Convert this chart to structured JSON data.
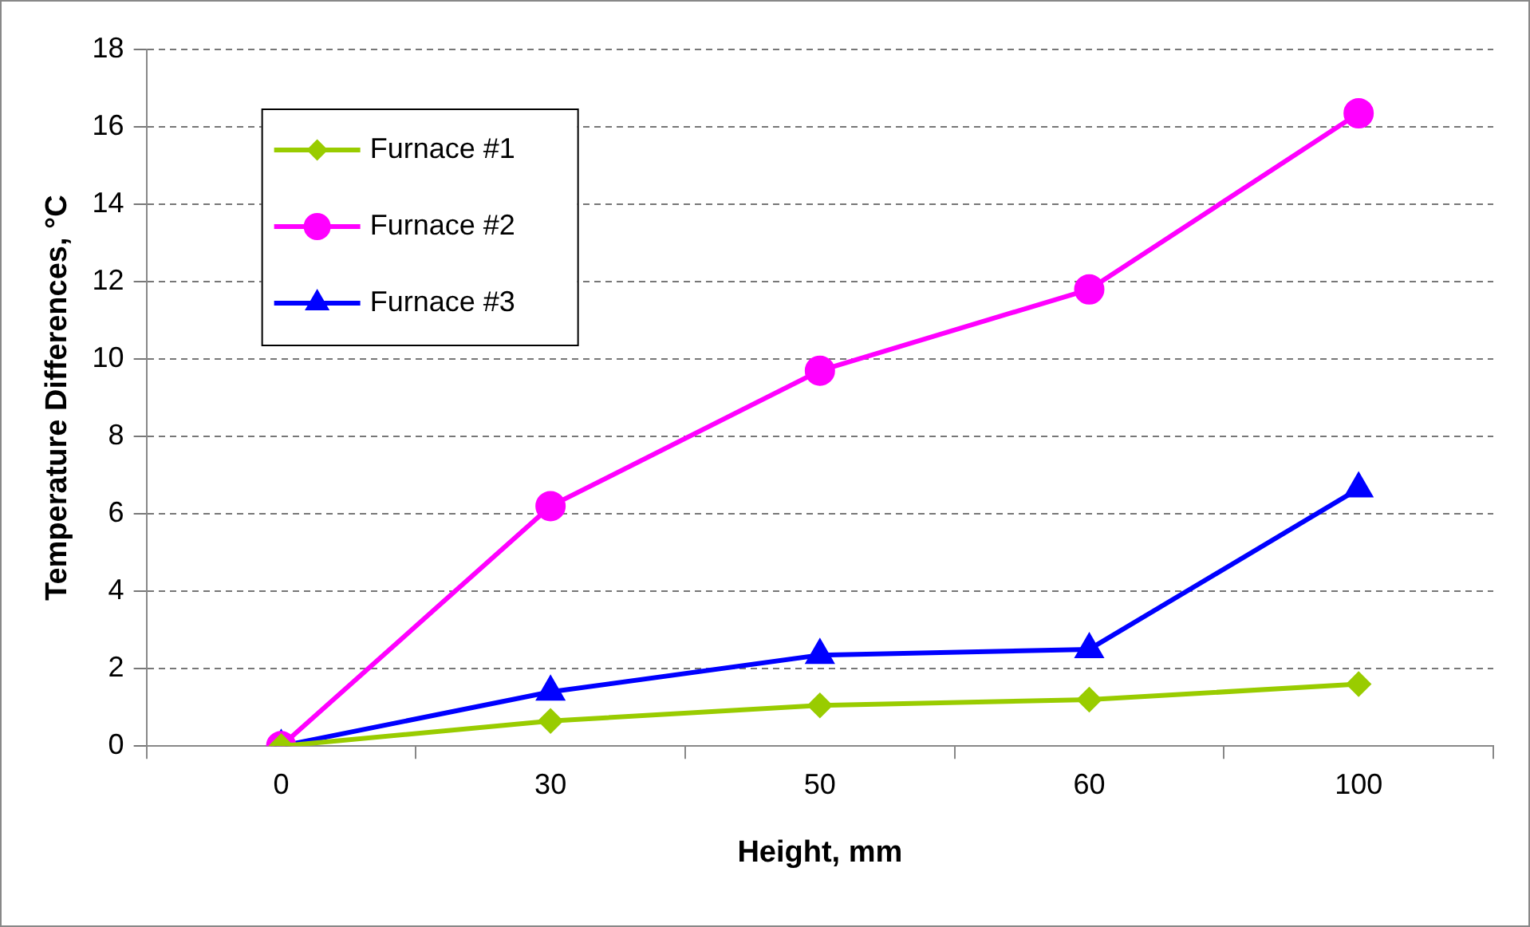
{
  "chart_data": {
    "type": "line",
    "xlabel": "Height, mm",
    "ylabel": "Temperature Differences, °C",
    "categories": [
      "0",
      "30",
      "50",
      "60",
      "100"
    ],
    "ylim": [
      0,
      18
    ],
    "yticks": [
      0,
      2,
      4,
      6,
      8,
      10,
      12,
      14,
      16,
      18
    ],
    "grid": "y",
    "legend": "top left",
    "series": [
      {
        "name": "Furnace #1",
        "color": "#99cc00",
        "marker": "diamond",
        "values": [
          0,
          0.65,
          1.05,
          1.2,
          1.6
        ]
      },
      {
        "name": "Furnace #2",
        "color": "#ff00ff",
        "marker": "circle",
        "values": [
          0,
          6.2,
          9.7,
          11.8,
          16.35
        ]
      },
      {
        "name": "Furnace #3",
        "color": "#0000ff",
        "marker": "triangle",
        "values": [
          0,
          1.4,
          2.35,
          2.5,
          6.65
        ]
      }
    ]
  }
}
